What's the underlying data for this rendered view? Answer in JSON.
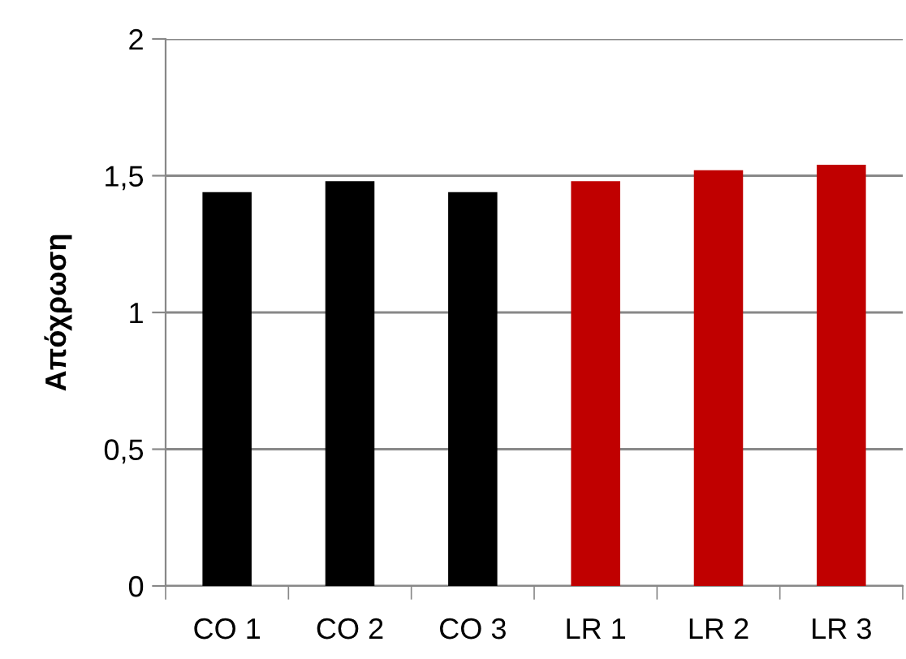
{
  "chart_data": {
    "type": "bar",
    "ylabel": "Απόχρωση",
    "categories": [
      "CO 1",
      "CO 2",
      "CO 3",
      "LR 1",
      "LR 2",
      "LR 3"
    ],
    "values": [
      1.44,
      1.48,
      1.44,
      1.48,
      1.52,
      1.54
    ],
    "colors": [
      "#000000",
      "#000000",
      "#000000",
      "#c00000",
      "#c00000",
      "#c00000"
    ],
    "ylim": [
      0,
      2
    ],
    "yticks": [
      0,
      {
        "value": 0.5,
        "label": "0,5"
      },
      1,
      {
        "value": 1.5,
        "label": "1,5"
      },
      2
    ],
    "grid": "y"
  }
}
